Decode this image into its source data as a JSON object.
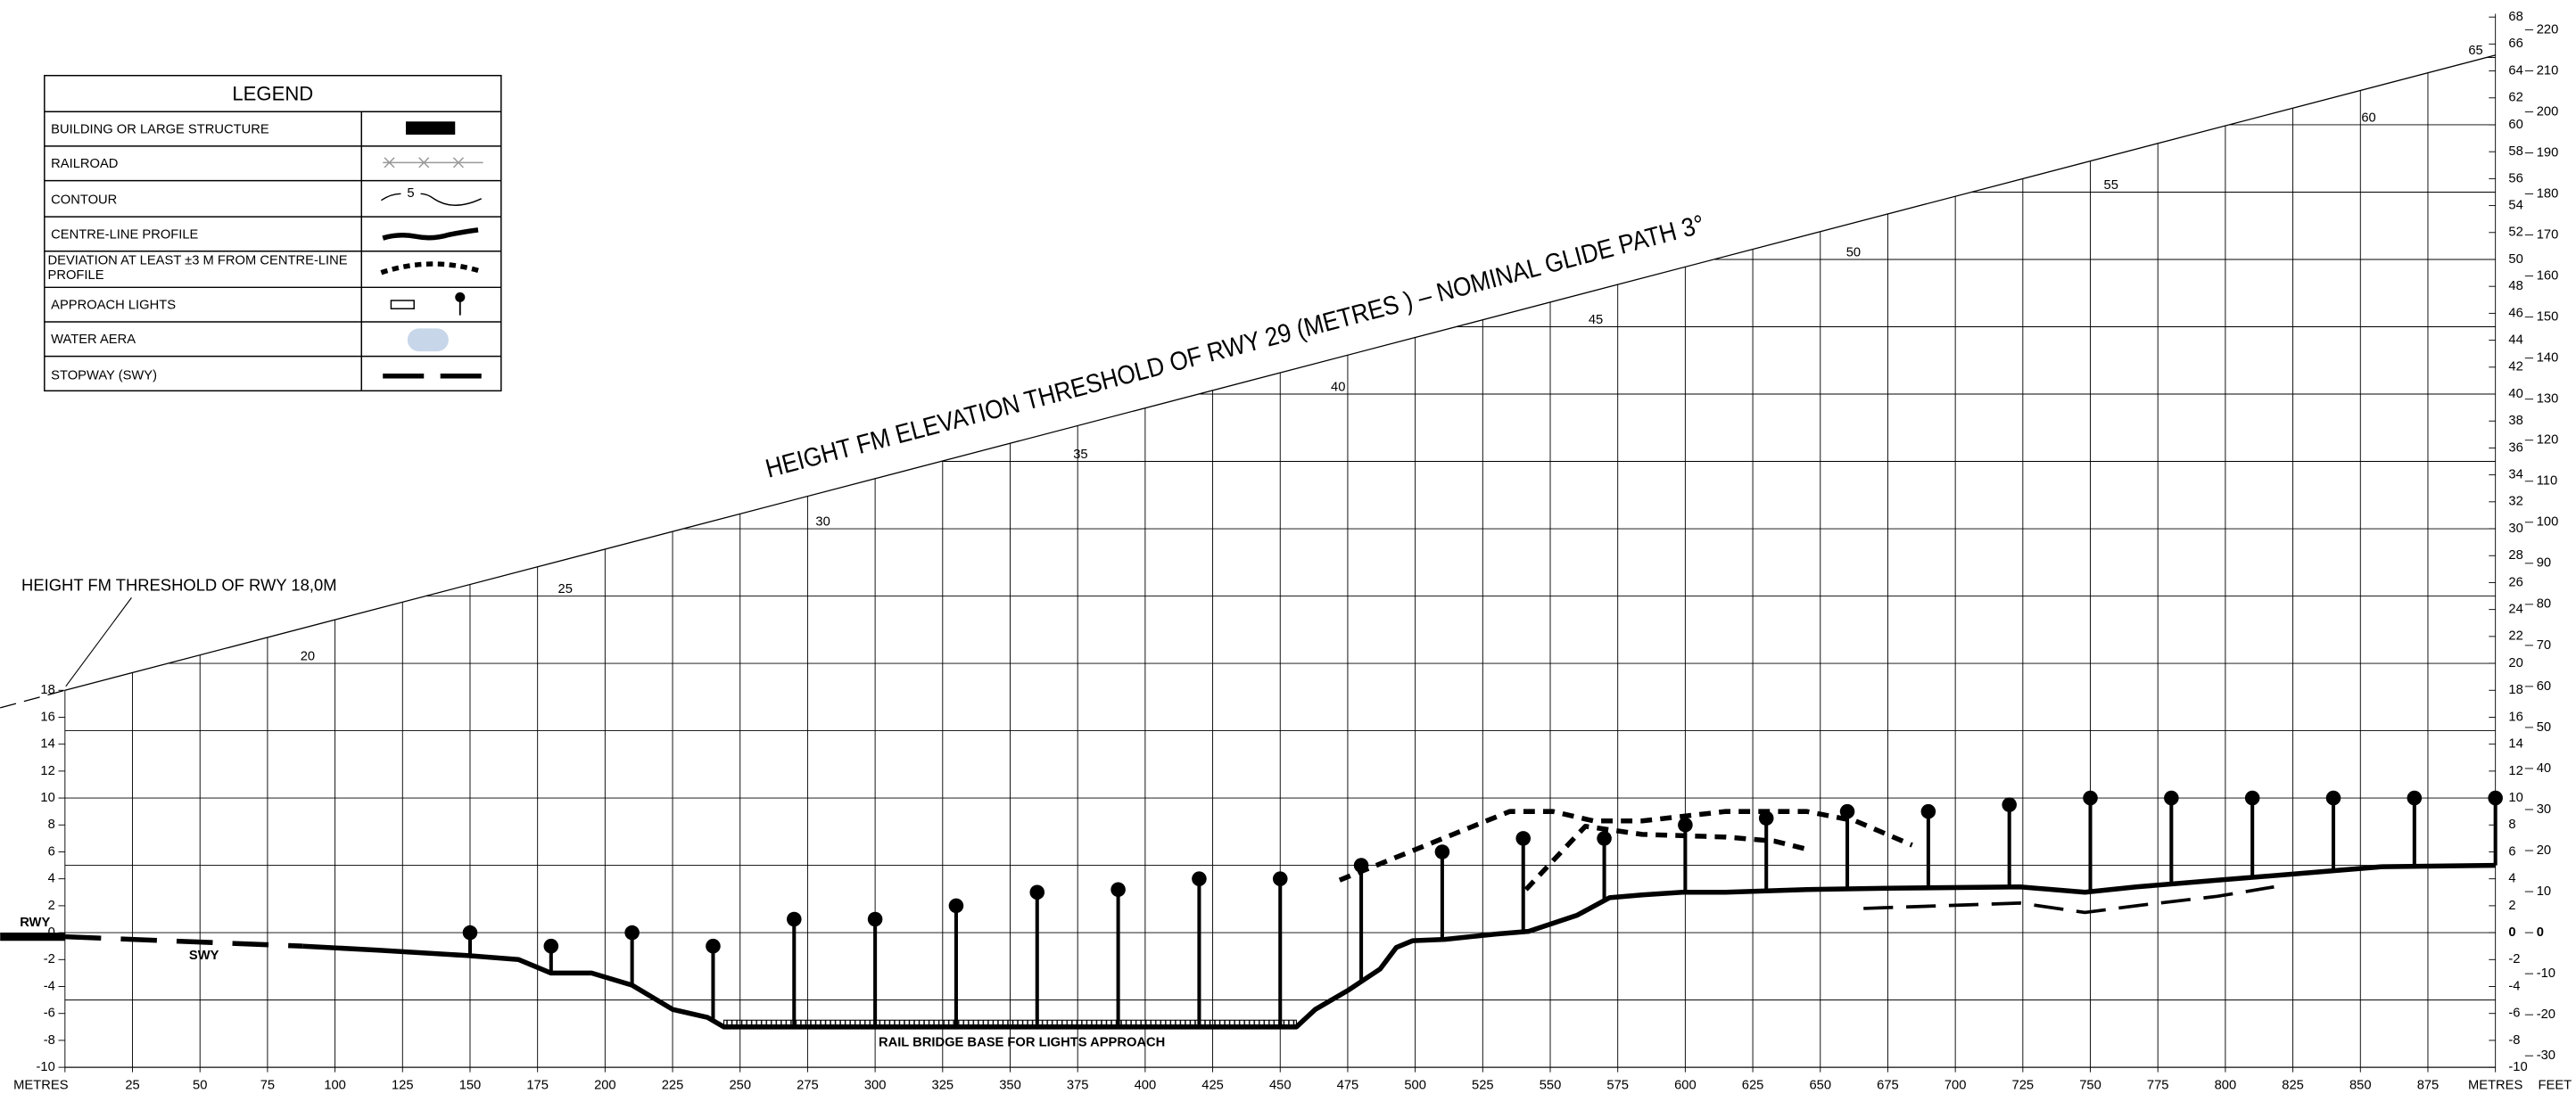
{
  "legend": {
    "title": "LEGEND",
    "items": [
      {
        "label": "BUILDING OR LARGE STRUCTURE"
      },
      {
        "label": "RAILROAD"
      },
      {
        "label": "CONTOUR",
        "sample": "5"
      },
      {
        "label": "CENTRE-LINE PROFILE"
      },
      {
        "label": "DEVIATION AT LEAST ±3 M FROM CENTRE-LINE PROFILE"
      },
      {
        "label": "APPROACH LIGHTS"
      },
      {
        "label": "WATER AERA"
      },
      {
        "label": "STOPWAY (SWY)"
      }
    ]
  },
  "chart_data": {
    "type": "profile",
    "title": "HEIGHT FM ELEVATION THRESHOLD OF RWY 29 (METRES ) – NOMINAL GLIDE PATH 3°",
    "threshold_note": "HEIGHT FM THRESHOLD OF RWY 18,0M",
    "runway_label": "RWY",
    "stopway_label": "SWY",
    "bridge_label": "RAIL BRIDGE BASE FOR LIGHTS APPROACH",
    "y2_unit": "FEET",
    "xlim": [
      0,
      900
    ],
    "xticks": [
      {
        "value": 0,
        "label": "METRES"
      },
      25,
      50,
      75,
      100,
      125,
      150,
      175,
      200,
      225,
      250,
      275,
      300,
      325,
      350,
      375,
      400,
      425,
      450,
      475,
      500,
      525,
      550,
      575,
      600,
      625,
      650,
      675,
      700,
      725,
      750,
      775,
      800,
      825,
      850,
      875,
      {
        "value": 900,
        "label": "METRES"
      }
    ],
    "ylim": [
      -10,
      68
    ],
    "yticks": [
      -10,
      -8,
      -6,
      -4,
      -2,
      0,
      2,
      4,
      6,
      8,
      10,
      12,
      14,
      16,
      18
    ],
    "yticks_right": [
      -10,
      -8,
      -6,
      -4,
      -2,
      0,
      2,
      4,
      6,
      8,
      10,
      12,
      14,
      16,
      18,
      20,
      22,
      24,
      26,
      28,
      30,
      32,
      34,
      36,
      38,
      40,
      42,
      44,
      46,
      48,
      50,
      52,
      54,
      56,
      58,
      60,
      62,
      64,
      66,
      68
    ],
    "y2lim": [
      -32.81,
      223.1
    ],
    "y2ticks": [
      -30,
      -20,
      -10,
      0,
      10,
      20,
      30,
      40,
      50,
      60,
      70,
      80,
      90,
      100,
      110,
      120,
      130,
      140,
      150,
      160,
      170,
      180,
      190,
      200,
      210,
      220
    ],
    "hgrid_step": 5,
    "glide_path": {
      "x": [
        0,
        900
      ],
      "values": [
        18,
        65.17
      ],
      "labels": [
        20,
        25,
        30,
        35,
        40,
        45,
        50,
        55,
        60,
        65
      ]
    },
    "series": [
      {
        "style": "glide-extension",
        "x": [
          -24,
          0
        ],
        "values": [
          16.7,
          18
        ]
      },
      {
        "style": "runway",
        "x": [
          -24,
          0
        ],
        "values": [
          -0.3,
          -0.3
        ]
      },
      {
        "style": "stopway",
        "x": [
          0,
          88
        ],
        "values": [
          -0.3,
          -1
        ]
      },
      {
        "style": "profile",
        "x": [
          88,
          116,
          149,
          168,
          180,
          195,
          210,
          225,
          238,
          244,
          456,
          463,
          475,
          487,
          493,
          499,
          511,
          530,
          542,
          560,
          572,
          584,
          599,
          615,
          645,
          675,
          724,
          748,
          767,
          797,
          828,
          858,
          900
        ],
        "values": [
          -1,
          -1.3,
          -1.7,
          -2,
          -3,
          -3,
          -3.9,
          -5.7,
          -6.3,
          -7,
          -7,
          -5.7,
          -4.3,
          -2.7,
          -1.1,
          -0.6,
          -0.5,
          -0.1,
          0.1,
          1.3,
          2.6,
          2.8,
          3,
          3,
          3.2,
          3.3,
          3.4,
          3,
          3.4,
          3.9,
          4.4,
          4.9,
          5
        ]
      },
      {
        "style": "deviation",
        "x": [
          472,
          535,
          551,
          566,
          584,
          615,
          645,
          663,
          684
        ],
        "values": [
          3.9,
          9,
          9,
          8.3,
          8.3,
          9,
          9,
          8.3,
          6.5
        ]
      },
      {
        "style": "deviation",
        "x": [
          541,
          563,
          584,
          615,
          633,
          645
        ],
        "values": [
          3.2,
          7.9,
          7.3,
          7.1,
          6.8,
          6.2
        ]
      },
      {
        "style": "deviation-long",
        "x": [
          666,
          724,
          748,
          767,
          797,
          818
        ],
        "values": [
          1.8,
          2.2,
          1.5,
          2,
          2.7,
          3.4
        ]
      }
    ],
    "bridge": {
      "x": [
        244,
        456
      ],
      "values": [
        -7,
        -6.5
      ]
    },
    "approach_lights": {
      "x": [
        150,
        180,
        210,
        240,
        270,
        300,
        330,
        360,
        390,
        420,
        450,
        480,
        510,
        540,
        570,
        600,
        630,
        660,
        690,
        720,
        750,
        780,
        810,
        840,
        870,
        900
      ],
      "values": [
        0,
        -1,
        0,
        -1,
        1,
        1,
        2,
        3,
        3.2,
        4,
        4,
        5,
        6,
        7,
        7,
        8,
        8.5,
        9,
        9,
        9.5,
        10,
        10,
        10,
        10,
        10,
        10
      ]
    }
  }
}
